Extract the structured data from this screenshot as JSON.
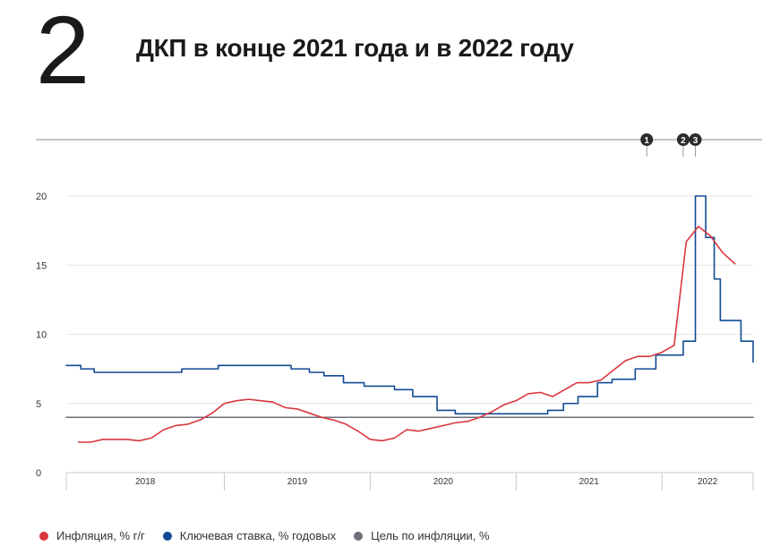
{
  "page": {
    "number": "2",
    "title": "ДКП в конце 2021 года и в 2022 году"
  },
  "colors": {
    "inflation": "#d9363e",
    "key_rate": "#124a94",
    "target": "#6e6e78",
    "marker": "#2b2b2b",
    "grid": "#e6e6e6"
  },
  "chart_data": {
    "type": "line",
    "ylim": [
      0,
      20
    ],
    "yticks": [
      "0",
      "5",
      "10",
      "15",
      "20"
    ],
    "x_range": [
      2017.9167,
      2022.625
    ],
    "years": [
      {
        "label": "2018",
        "start": 2017.9167,
        "end": 2019.0
      },
      {
        "label": "2019",
        "start": 2019.0,
        "end": 2020.0
      },
      {
        "label": "2020",
        "start": 2020.0,
        "end": 2021.0
      },
      {
        "label": "2021",
        "start": 2021.0,
        "end": 2022.0
      },
      {
        "label": "2022",
        "start": 2022.0,
        "end": 2022.625
      }
    ],
    "markers": [
      {
        "label": "1",
        "x": 2021.8958
      },
      {
        "label": "2",
        "x": 2022.1458
      },
      {
        "label": "3",
        "x": 2022.2292
      }
    ],
    "series": [
      {
        "name": "Инфляция, % г/г",
        "kind": "line",
        "x": [
          2018.0,
          2018.0833,
          2018.1667,
          2018.25,
          2018.3333,
          2018.4167,
          2018.5,
          2018.5833,
          2018.6667,
          2018.75,
          2018.8333,
          2018.9167,
          2019.0,
          2019.0833,
          2019.1667,
          2019.25,
          2019.3333,
          2019.4167,
          2019.5,
          2019.5833,
          2019.6667,
          2019.75,
          2019.8333,
          2019.9167,
          2020.0,
          2020.0833,
          2020.1667,
          2020.25,
          2020.3333,
          2020.4167,
          2020.5,
          2020.5833,
          2020.6667,
          2020.75,
          2020.8333,
          2020.9167,
          2021.0,
          2021.0833,
          2021.1667,
          2021.25,
          2021.3333,
          2021.4167,
          2021.5,
          2021.5833,
          2021.6667,
          2021.75,
          2021.8333,
          2021.9167,
          2022.0,
          2022.0833,
          2022.1667,
          2022.25,
          2022.3333,
          2022.4167,
          2022.5
        ],
        "values": [
          2.2,
          2.2,
          2.4,
          2.4,
          2.4,
          2.3,
          2.5,
          3.1,
          3.4,
          3.5,
          3.8,
          4.3,
          5.0,
          5.2,
          5.3,
          5.2,
          5.1,
          4.7,
          4.6,
          4.3,
          4.0,
          3.8,
          3.5,
          3.0,
          2.4,
          2.3,
          2.5,
          3.1,
          3.0,
          3.2,
          3.4,
          3.6,
          3.7,
          4.0,
          4.4,
          4.9,
          5.2,
          5.7,
          5.8,
          5.5,
          6.0,
          6.5,
          6.5,
          6.7,
          7.4,
          8.1,
          8.4,
          8.4,
          8.7,
          9.2,
          16.7,
          17.8,
          17.1,
          15.9,
          15.1
        ]
      },
      {
        "name": "Ключевая ставка, % годовых",
        "kind": "step",
        "x": [
          2017.9167,
          2018.0167,
          2018.1083,
          2018.7083,
          2018.9583,
          2019.4583,
          2019.5833,
          2019.6833,
          2019.8167,
          2019.9583,
          2020.1667,
          2020.2917,
          2020.4583,
          2020.5833,
          2020.6667,
          2021.0,
          2021.2167,
          2021.325,
          2021.425,
          2021.5583,
          2021.6583,
          2021.8167,
          2021.9583,
          2022.1458,
          2022.2292,
          2022.3,
          2022.3583,
          2022.4,
          2022.5417,
          2022.625
        ],
        "values": [
          7.75,
          7.5,
          7.25,
          7.5,
          7.75,
          7.5,
          7.25,
          7.0,
          6.5,
          6.25,
          6.0,
          5.5,
          4.5,
          4.25,
          4.25,
          4.25,
          4.5,
          5.0,
          5.5,
          6.5,
          6.75,
          7.5,
          8.5,
          9.5,
          20.0,
          17.0,
          14.0,
          11.0,
          9.5,
          8.0
        ]
      },
      {
        "name": "Цель по инфляции, %",
        "kind": "line",
        "x": [
          2017.9167,
          2022.625
        ],
        "values": [
          4.0,
          4.0
        ]
      }
    ]
  }
}
